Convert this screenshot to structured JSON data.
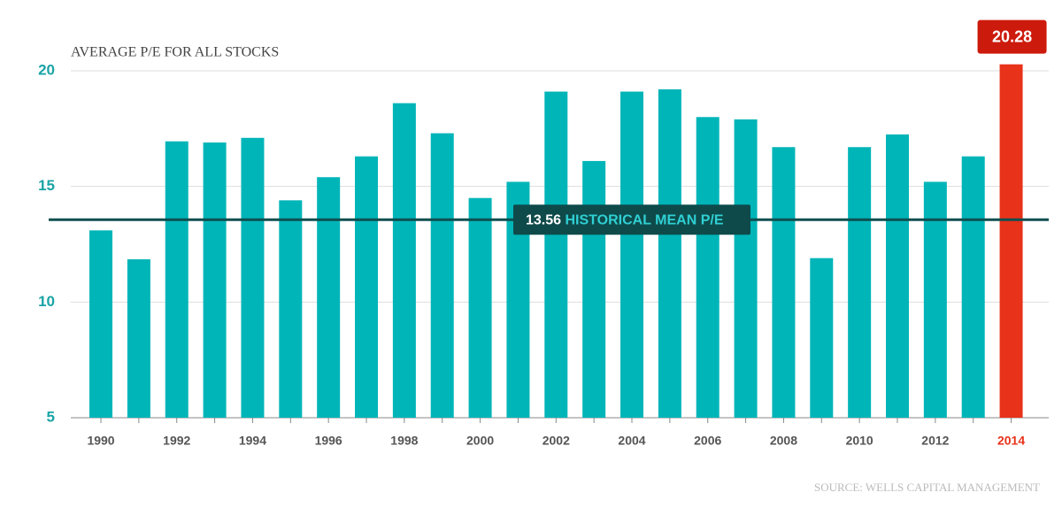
{
  "chart_data": {
    "type": "bar",
    "title": "AVERAGE P/E FOR ALL STOCKS",
    "source": "SOURCE: WELLS CAPITAL MANAGEMENT",
    "categories": [
      "1990",
      null,
      "1992",
      null,
      "1994",
      null,
      "1996",
      null,
      "1998",
      null,
      "2000",
      null,
      "2002",
      null,
      "2004",
      null,
      "2006",
      null,
      "2008",
      null,
      "2010",
      null,
      "2012",
      null,
      "2014"
    ],
    "values": [
      13.1,
      11.85,
      16.95,
      16.9,
      17.1,
      14.4,
      15.4,
      16.3,
      18.6,
      17.3,
      14.5,
      15.2,
      19.1,
      16.1,
      19.1,
      19.2,
      18.0,
      17.9,
      16.7,
      11.9,
      16.7,
      17.25,
      15.2,
      16.3,
      20.28
    ],
    "colors": [
      "#00b5b8",
      "#00b5b8",
      "#00b5b8",
      "#00b5b8",
      "#00b5b8",
      "#00b5b8",
      "#00b5b8",
      "#00b5b8",
      "#00b5b8",
      "#00b5b8",
      "#00b5b8",
      "#00b5b8",
      "#00b5b8",
      "#00b5b8",
      "#00b5b8",
      "#00b5b8",
      "#00b5b8",
      "#00b5b8",
      "#00b5b8",
      "#00b5b8",
      "#00b5b8",
      "#00b5b8",
      "#00b5b8",
      "#00b5b8",
      "#e8321a"
    ],
    "ylim": [
      5,
      20
    ],
    "yticks": [
      5,
      10,
      15,
      20
    ],
    "grid": true,
    "mean": {
      "value": 13.56,
      "label": "HISTORICAL MEAN P/E"
    }
  }
}
